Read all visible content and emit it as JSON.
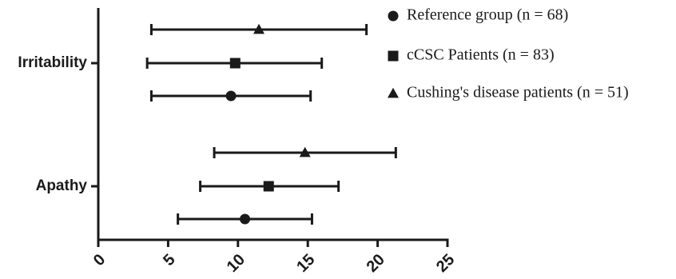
{
  "chart_data": {
    "type": "scatter",
    "orientation": "horizontal",
    "categories": [
      "Irritability",
      "Apathy"
    ],
    "xlim": [
      0,
      25
    ],
    "xticks": [
      "0",
      "5",
      "10",
      "15",
      "20",
      "25"
    ],
    "xlabel": "",
    "ylabel": "",
    "grid": false,
    "legend_position": "top-right",
    "series": [
      {
        "name": "Reference group (n = 68)",
        "marker": "circle",
        "points": [
          {
            "category": "Irritability",
            "mean": 9.5,
            "low": 3.8,
            "high": 15.2
          },
          {
            "category": "Apathy",
            "mean": 10.5,
            "low": 5.7,
            "high": 15.3
          }
        ]
      },
      {
        "name": "cCSC Patients (n = 83)",
        "marker": "square",
        "points": [
          {
            "category": "Irritability",
            "mean": 9.8,
            "low": 3.5,
            "high": 16.0
          },
          {
            "category": "Apathy",
            "mean": 12.2,
            "low": 7.3,
            "high": 17.2
          }
        ]
      },
      {
        "name": "Cushing's disease patients (n = 51)",
        "marker": "triangle",
        "points": [
          {
            "category": "Irritability",
            "mean": 11.5,
            "low": 3.8,
            "high": 19.2
          },
          {
            "category": "Apathy",
            "mean": 14.8,
            "low": 8.3,
            "high": 21.3
          }
        ]
      }
    ],
    "colors": {
      "ink": "#1a1a1a",
      "background": "#ffffff"
    }
  }
}
